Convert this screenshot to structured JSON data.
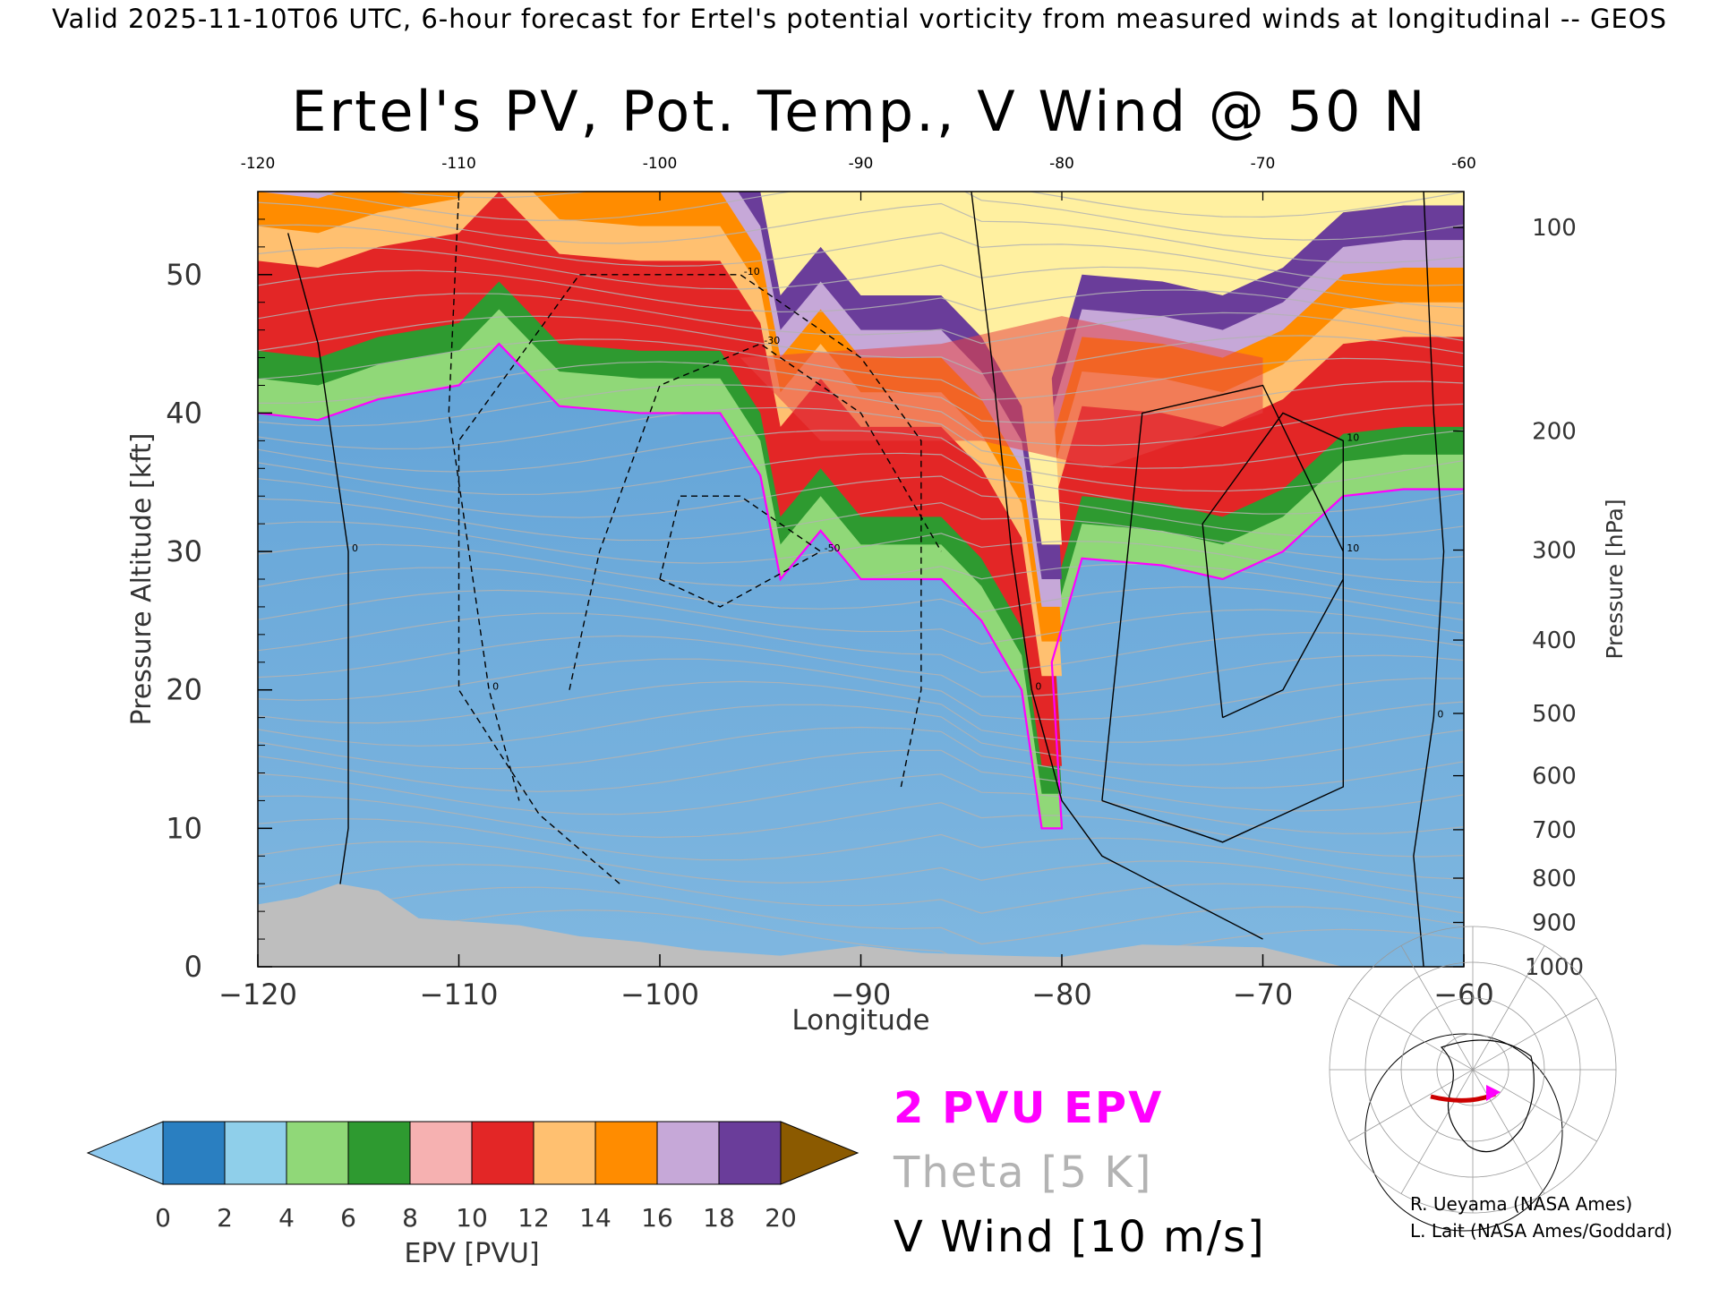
{
  "header": {
    "forecast_line": "Valid 2025-11-10T06 UTC, 6-hour forecast for Ertel's potential vorticity from measured winds at longitudinal -- GEOS"
  },
  "colors": {
    "pv_contour": "#ff00ff",
    "theta_contour": "#b3b3b3",
    "wind_contour": "#000000",
    "terrain": "#bebebe",
    "colorbar": [
      "#8fcaf0",
      "#2a7fc1",
      "#8fcfea",
      "#90d878",
      "#2e9a30",
      "#f6b1b1",
      "#e32626",
      "#ffc070",
      "#ff8c00",
      "#c6a8d8",
      "#6a3d9a",
      "#fff0a0",
      "#8b5a00"
    ]
  },
  "chart_data": {
    "type": "heatmap",
    "title": "Ertel's PV, Pot. Temp., V Wind @ 50 N",
    "xlabel": "Longitude",
    "ylabel_left": "Pressure Altitude [kft]",
    "ylabel_right": "Pressure [hPa]",
    "xlim": [
      -120,
      -60
    ],
    "ylim": [
      0,
      56
    ],
    "x_ticks_bottom": [
      "−120",
      "−110",
      "−100",
      "−90",
      "−80",
      "−70",
      "−60"
    ],
    "x_ticks_top": [
      "-120",
      "-110",
      "-100",
      "-90",
      "-80",
      "-70",
      "-60"
    ],
    "y_ticks_left": [
      "0",
      "10",
      "20",
      "30",
      "40",
      "50"
    ],
    "y_ticks_right": [
      {
        "label": "1000",
        "alt": 0
      },
      {
        "label": "900",
        "alt": 3.2
      },
      {
        "label": "800",
        "alt": 6.4
      },
      {
        "label": "700",
        "alt": 9.9
      },
      {
        "label": "600",
        "alt": 13.8
      },
      {
        "label": "500",
        "alt": 18.3
      },
      {
        "label": "400",
        "alt": 23.6
      },
      {
        "label": "300",
        "alt": 30.1
      },
      {
        "label": "200",
        "alt": 38.7
      },
      {
        "label": "100",
        "alt": 53.4
      }
    ],
    "tropopause_2pvu_kft": [
      {
        "lon": -120,
        "alt": 40
      },
      {
        "lon": -117,
        "alt": 39.5
      },
      {
        "lon": -114,
        "alt": 41
      },
      {
        "lon": -110,
        "alt": 42
      },
      {
        "lon": -108,
        "alt": 45
      },
      {
        "lon": -105,
        "alt": 40.5
      },
      {
        "lon": -101,
        "alt": 40
      },
      {
        "lon": -97,
        "alt": 40
      },
      {
        "lon": -95,
        "alt": 35.5
      },
      {
        "lon": -94,
        "alt": 28
      },
      {
        "lon": -92,
        "alt": 31.5
      },
      {
        "lon": -90,
        "alt": 28
      },
      {
        "lon": -86,
        "alt": 28
      },
      {
        "lon": -84,
        "alt": 25
      },
      {
        "lon": -82,
        "alt": 20
      },
      {
        "lon": -81,
        "alt": 10
      },
      {
        "lon": -80,
        "alt": 10
      },
      {
        "lon": -80.5,
        "alt": 22
      },
      {
        "lon": -79,
        "alt": 29.5
      },
      {
        "lon": -75,
        "alt": 29
      },
      {
        "lon": -72,
        "alt": 28
      },
      {
        "lon": -69,
        "alt": 30
      },
      {
        "lon": -66,
        "alt": 34
      },
      {
        "lon": -63,
        "alt": 34.5
      },
      {
        "lon": -60,
        "alt": 34.5
      }
    ],
    "terrain_kft": [
      {
        "lon": -120,
        "alt": 4.5
      },
      {
        "lon": -118,
        "alt": 5
      },
      {
        "lon": -116,
        "alt": 6
      },
      {
        "lon": -114,
        "alt": 5.5
      },
      {
        "lon": -112,
        "alt": 3.5
      },
      {
        "lon": -110,
        "alt": 3.3
      },
      {
        "lon": -107,
        "alt": 3
      },
      {
        "lon": -104,
        "alt": 2.2
      },
      {
        "lon": -101,
        "alt": 1.8
      },
      {
        "lon": -98,
        "alt": 1.2
      },
      {
        "lon": -94,
        "alt": 0.8
      },
      {
        "lon": -90,
        "alt": 1.5
      },
      {
        "lon": -87,
        "alt": 1
      },
      {
        "lon": -83,
        "alt": 0.8
      },
      {
        "lon": -80,
        "alt": 0.7
      },
      {
        "lon": -76,
        "alt": 1.6
      },
      {
        "lon": -70,
        "alt": 1.4
      },
      {
        "lon": -66,
        "alt": 0
      }
    ],
    "v_wind_contours": [
      {
        "label": "0",
        "dashed": false,
        "path": [
          [
            -116.5,
            0
          ],
          [
            -115.5,
            10
          ],
          [
            -115.5,
            30
          ],
          [
            -117,
            45
          ],
          [
            -118.5,
            53
          ]
        ]
      },
      {
        "label": "0",
        "dashed": false,
        "path": [
          [
            -84.5,
            56
          ],
          [
            -83.5,
            44
          ],
          [
            -82.5,
            30
          ],
          [
            -81.5,
            20
          ],
          [
            -80,
            12
          ],
          [
            -78,
            8
          ],
          [
            -70,
            2
          ]
        ]
      },
      {
        "label": "0",
        "dashed": false,
        "path": [
          [
            -62,
            56
          ],
          [
            -61.5,
            40
          ],
          [
            -61,
            30
          ],
          [
            -61.5,
            18
          ],
          [
            -62.5,
            8
          ],
          [
            -62,
            0
          ]
        ]
      },
      {
        "label": "0",
        "dashed": true,
        "path": [
          [
            -110,
            56
          ],
          [
            -110.5,
            40
          ],
          [
            -108.5,
            20
          ],
          [
            -107,
            12
          ]
        ]
      },
      {
        "label": "-10",
        "dashed": true,
        "path": [
          [
            -102,
            6
          ],
          [
            -106,
            11
          ],
          [
            -110,
            20
          ],
          [
            -110,
            38
          ],
          [
            -104,
            50
          ],
          [
            -96,
            50
          ],
          [
            -90,
            44
          ],
          [
            -87,
            38
          ],
          [
            -87,
            20
          ],
          [
            -88,
            13
          ]
        ]
      },
      {
        "label": "-30",
        "dashed": true,
        "path": [
          [
            -104.5,
            20
          ],
          [
            -103,
            30
          ],
          [
            -100,
            42
          ],
          [
            -95,
            45
          ],
          [
            -90,
            40
          ],
          [
            -86,
            30
          ]
        ]
      },
      {
        "label": "-50",
        "dashed": true,
        "path": [
          [
            -100,
            28
          ],
          [
            -99,
            34
          ],
          [
            -96,
            34
          ],
          [
            -92,
            30
          ],
          [
            -97,
            26
          ],
          [
            -100,
            28
          ]
        ]
      },
      {
        "label": "10",
        "dashed": false,
        "path": [
          [
            -72,
            18
          ],
          [
            -73,
            32
          ],
          [
            -69,
            40
          ],
          [
            -66,
            38
          ],
          [
            -66,
            28
          ],
          [
            -69,
            20
          ],
          [
            -72,
            18
          ]
        ]
      },
      {
        "label": "10",
        "dashed": false,
        "path": [
          [
            -78,
            12
          ],
          [
            -72,
            9
          ],
          [
            -66,
            13
          ],
          [
            -66,
            30
          ],
          [
            -70,
            42
          ],
          [
            -76,
            40
          ],
          [
            -78,
            12
          ]
        ]
      }
    ],
    "theta_contours_note": "Theta [5 K]",
    "colorbar": {
      "label": "EPV [PVU]",
      "ticks": [
        "0",
        "2",
        "4",
        "6",
        "8",
        "10",
        "12",
        "14",
        "16",
        "18",
        "20"
      ],
      "min": 0,
      "max": 20
    },
    "legend": {
      "pv": "2 PVU EPV",
      "theta": "Theta [5 K]",
      "wind": "V Wind [10 m/s]"
    }
  },
  "credits": {
    "line1": "R. Ueyama (NASA Ames)",
    "line2": "L. Lait (NASA Ames/Goddard)"
  }
}
